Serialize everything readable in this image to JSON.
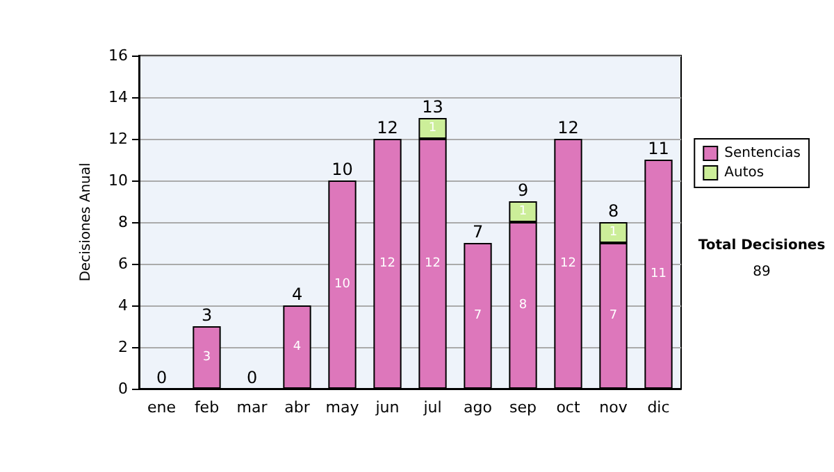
{
  "chart_data": {
    "type": "bar",
    "stacked": true,
    "ylabel": "Decisiones Anual",
    "categories": [
      "ene",
      "feb",
      "mar",
      "abr",
      "may",
      "jun",
      "jul",
      "ago",
      "sep",
      "oct",
      "nov",
      "dic"
    ],
    "series": [
      {
        "name": "Sentencias",
        "color": "#dd77bb",
        "values": [
          0,
          3,
          0,
          4,
          10,
          12,
          12,
          7,
          8,
          12,
          7,
          11
        ],
        "value_labels": [
          null,
          "3",
          null,
          "4",
          "10",
          "12",
          "12",
          "7",
          "8",
          "12",
          "7",
          "11"
        ]
      },
      {
        "name": "Autos",
        "color": "#ccee99",
        "values": [
          0,
          0,
          0,
          0,
          0,
          0,
          1,
          0,
          1,
          0,
          1,
          0
        ],
        "value_labels": [
          null,
          null,
          null,
          null,
          null,
          null,
          "1",
          null,
          "1",
          null,
          "1",
          null
        ]
      }
    ],
    "totals": [
      "0",
      "3",
      "0",
      "4",
      "10",
      "12",
      "13",
      "7",
      "9",
      "12",
      "8",
      "11"
    ],
    "ylim": [
      0,
      16
    ],
    "yticks": [
      0,
      2,
      4,
      6,
      8,
      10,
      12,
      14,
      16
    ],
    "grid": "y",
    "legend": "right",
    "annotations": [
      "Total Decisiones",
      "89"
    ]
  }
}
